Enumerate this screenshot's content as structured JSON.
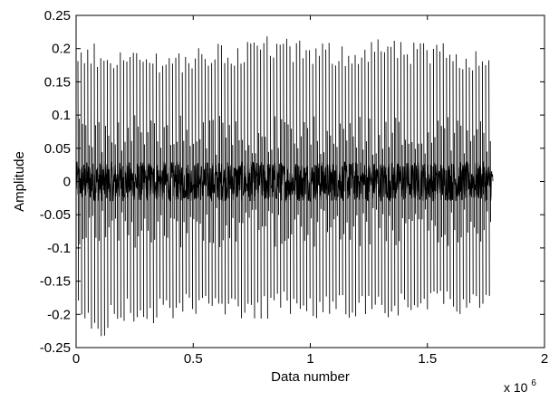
{
  "chart_data": {
    "type": "line",
    "title": "",
    "xlabel": "Data number",
    "ylabel": "Amplitude",
    "xlim": [
      0,
      2000000
    ],
    "ylim": [
      -0.25,
      0.25
    ],
    "x_exponent_label": "x 10",
    "x_exponent": "6",
    "x_ticks": [
      0,
      0.5,
      1,
      1.5,
      2
    ],
    "x_tick_labels": [
      "0",
      "0.5",
      "1",
      "1.5",
      "2"
    ],
    "y_ticks": [
      -0.25,
      -0.2,
      -0.15,
      -0.1,
      -0.05,
      0,
      0.05,
      0.1,
      0.15,
      0.2,
      0.25
    ],
    "y_tick_labels": [
      "-0.25",
      "-0.2",
      "-0.15",
      "-0.1",
      "-0.05",
      "0",
      "0.05",
      "0.1",
      "0.15",
      "0.2",
      "0.25"
    ],
    "grid": false,
    "line_color": "#000000",
    "series": [
      {
        "x_range": [
          0,
          1780000
        ],
        "dense_band": [
          -0.03,
          0.03
        ],
        "envelope": {
          "x": [
            0,
            100000,
            200000,
            300000,
            400000,
            500000,
            600000,
            700000,
            800000,
            900000,
            1000000,
            1100000,
            1200000,
            1300000,
            1400000,
            1500000,
            1600000,
            1700000,
            1780000
          ],
          "upper": [
            0.2,
            0.21,
            0.2,
            0.2,
            0.2,
            0.2,
            0.21,
            0.21,
            0.225,
            0.215,
            0.21,
            0.21,
            0.21,
            0.22,
            0.21,
            0.21,
            0.21,
            0.2,
            0.2
          ],
          "lower": [
            -0.2,
            -0.24,
            -0.21,
            -0.22,
            -0.21,
            -0.2,
            -0.21,
            -0.21,
            -0.21,
            -0.2,
            -0.21,
            -0.2,
            -0.21,
            -0.21,
            -0.2,
            -0.2,
            -0.2,
            -0.2,
            -0.2
          ]
        }
      }
    ]
  }
}
